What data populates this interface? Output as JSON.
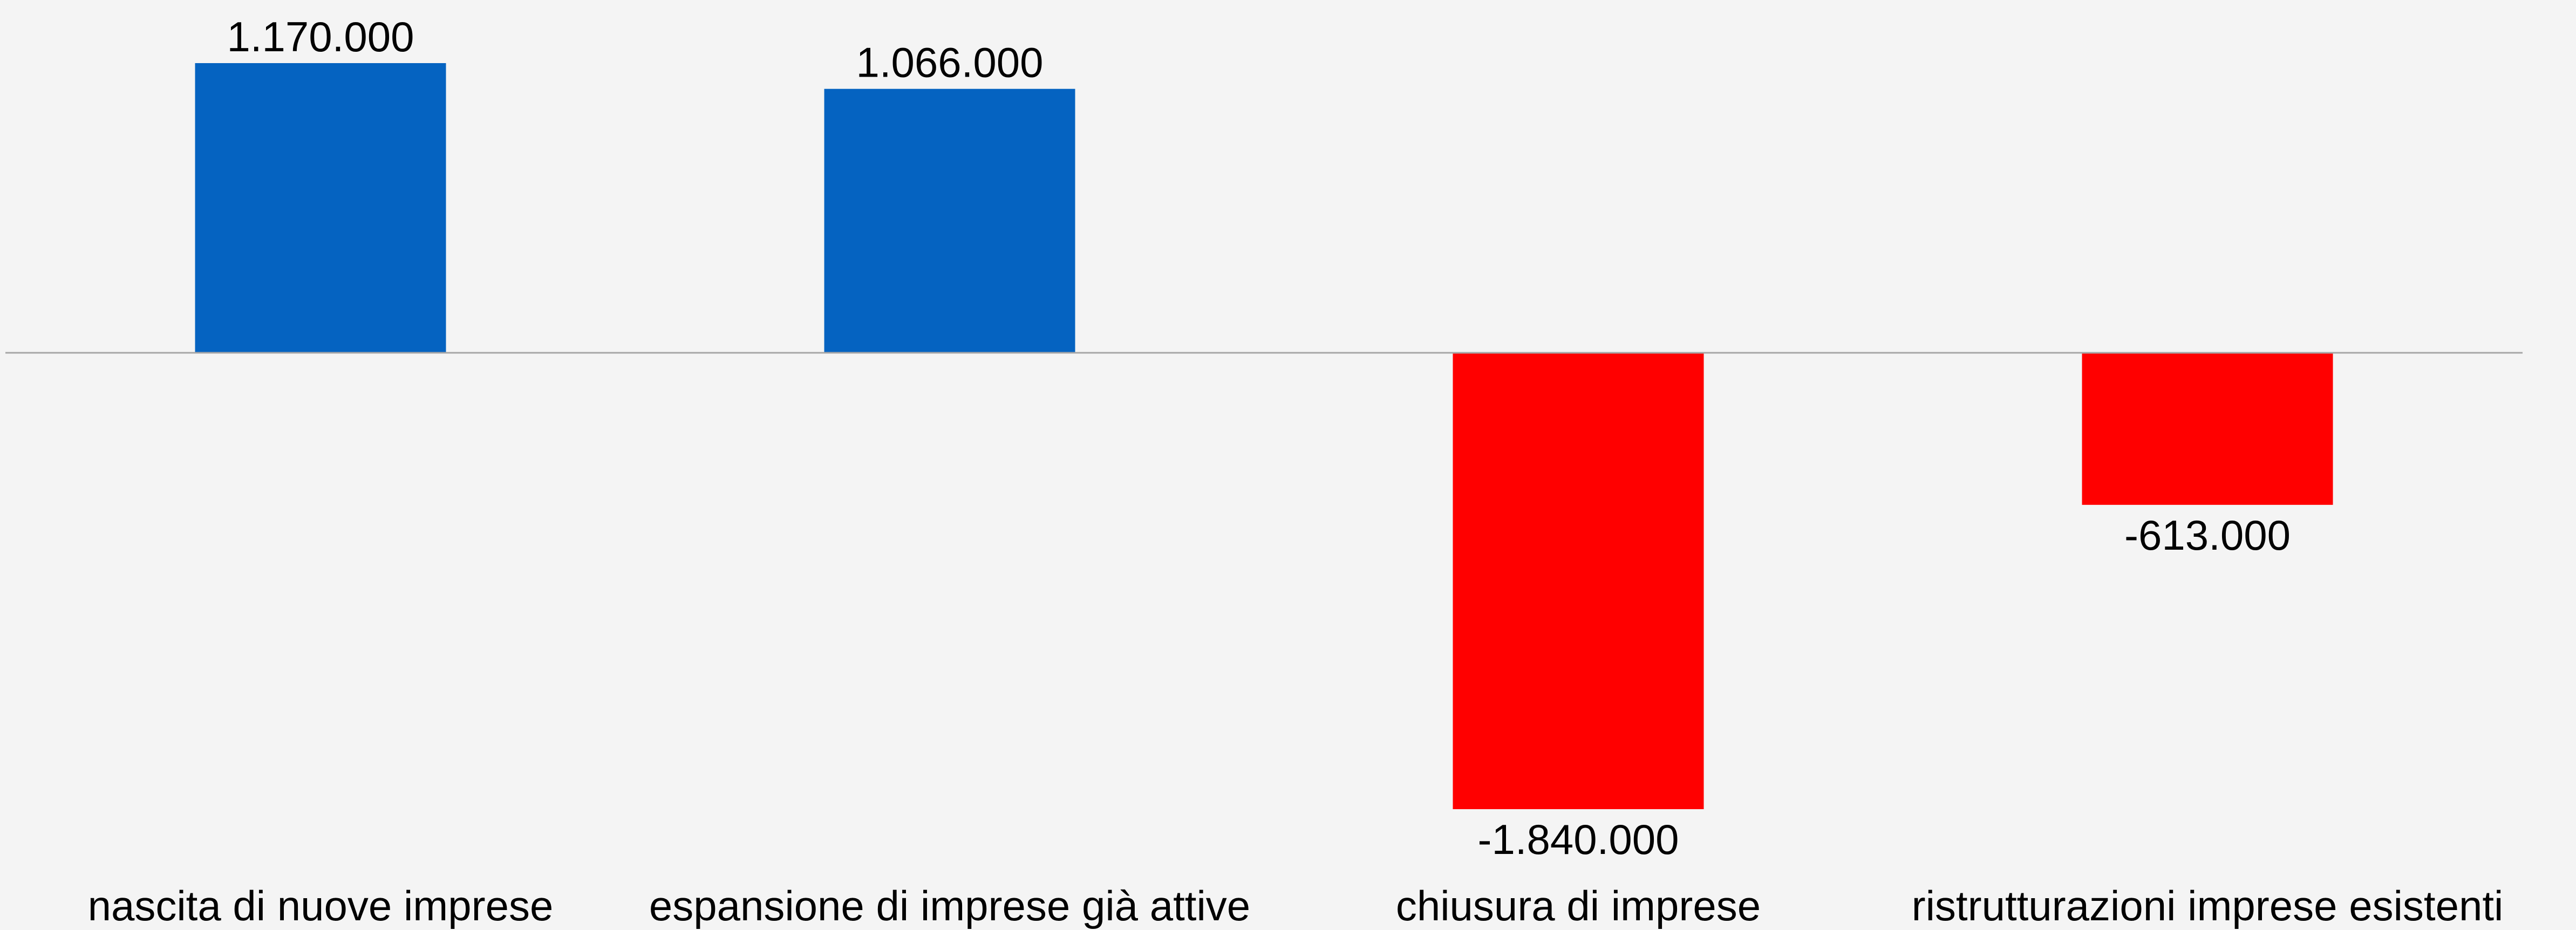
{
  "chart_data": {
    "type": "bar",
    "title": "",
    "xlabel": "",
    "ylabel": "",
    "categories": [
      "nascita di nuove imprese",
      "espansione di imprese già attive",
      "chiusura di imprese",
      "ristrutturazioni imprese esistenti"
    ],
    "values": [
      1170000,
      1066000,
      -1840000,
      -613000
    ],
    "data_labels": [
      "1.170.000",
      "1.066.000",
      "-1.840.000",
      "-613.000"
    ],
    "ylim": [
      -1840000,
      1170000
    ],
    "grid": false,
    "legend": "none",
    "colors": {
      "positive": "#0563c1",
      "negative": "#ff0000",
      "baseline": "#a6a6a6",
      "background": "#f4f4f4"
    }
  }
}
